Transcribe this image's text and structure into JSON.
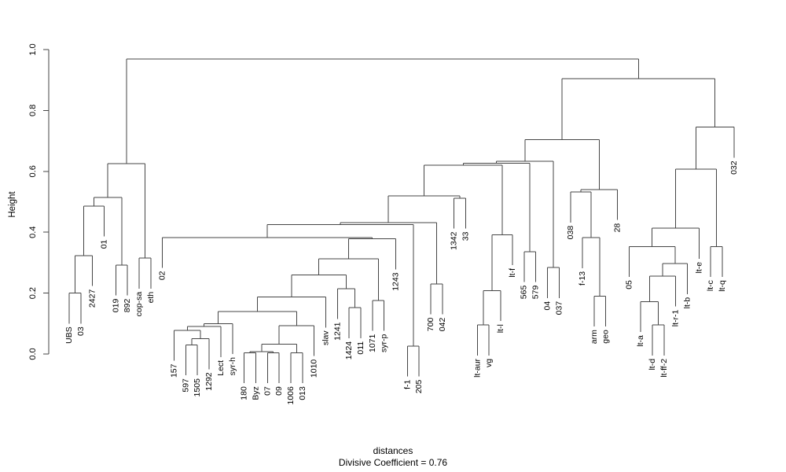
{
  "figure": {
    "ylabel": "Height",
    "caption_line1": "distances",
    "caption_line2": "Divisive Coefficient =  0.76",
    "line_color": "#454545",
    "text_color": "#000000"
  },
  "chart_data": {
    "type": "dendrogram",
    "title": "distances",
    "subtitle": "Divisive Coefficient =  0.76",
    "divisive_coefficient": 0.76,
    "xlabel": "distances",
    "ylabel": "Height",
    "ylim": [
      0,
      1
    ],
    "yticks": [
      0,
      0.2,
      0.4,
      0.6,
      0.8,
      1.0
    ],
    "leaf_hang": 0.1,
    "leaf_order": [
      "UBS",
      "03",
      "2427",
      "01",
      "019",
      "892",
      "cop-sa",
      "eth",
      "02",
      "157",
      "597",
      "1505",
      "1292",
      "Lect",
      "syr-h",
      "180",
      "Byz",
      "07",
      "09",
      "1006",
      "013",
      "1010",
      "slav",
      "1241",
      "1424",
      "011",
      "1071",
      "syr-p",
      "1243",
      "f-1",
      "205",
      "700",
      "042",
      "1342",
      "33",
      "lt-aur",
      "vg",
      "lt-l",
      "lt-f",
      "565",
      "579",
      "04",
      "037",
      "038",
      "f-13",
      "arm",
      "geo",
      "28",
      "05",
      "lt-a",
      "lt-d",
      "lt-ff-2",
      "lt-r-1",
      "lt-b",
      "lt-e",
      "lt-c",
      "lt-q",
      "032"
    ],
    "tree": {
      "h": 0.969,
      "c": [
        {
          "h": 0.625,
          "c": [
            {
              "h": 0.514,
              "c": [
                {
                  "h": 0.486,
                  "c": [
                    {
                      "h": 0.323,
                      "c": [
                        {
                          "h": 0.2,
                          "c": [
                            "UBS",
                            "03"
                          ]
                        },
                        "2427"
                      ]
                    },
                    "01"
                  ]
                },
                {
                  "h": 0.292,
                  "c": [
                    "019",
                    "892"
                  ]
                }
              ]
            },
            {
              "h": 0.315,
              "c": [
                "cop-sa",
                "eth"
              ]
            }
          ]
        },
        {
          "h": 0.905,
          "c": [
            {
              "h": 0.704,
              "c": [
                {
                  "h": 0.633,
                  "c": [
                    {
                      "h": 0.627,
                      "c": [
                        {
                          "h": 0.62,
                          "c": [
                            {
                              "h": 0.519,
                              "c": [
                                {
                                  "h": 0.431,
                                  "c": [
                                    {
                                      "h": 0.425,
                                      "c": [
                                        {
                                          "h": 0.383,
                                          "c": [
                                            "02",
                                            {
                                              "h": 0.378,
                                              "c": [
                                                {
                                                  "h": 0.313,
                                                  "c": [
                                                    {
                                                      "h": 0.26,
                                                      "c": [
                                                        {
                                                          "h": 0.187,
                                                          "c": [
                                                            {
                                                              "h": 0.14,
                                                              "c": [
                                                                {
                                                                  "h": 0.1,
                                                                  "c": [
                                                                    {
                                                                      "h": 0.09,
                                                                      "c": [
                                                                        {
                                                                          "h": 0.078,
                                                                          "c": [
                                                                            "157",
                                                                            {
                                                                              "h": 0.05,
                                                                              "c": [
                                                                                {
                                                                                  "h": 0.03,
                                                                                  "c": [
                                                                                    "597",
                                                                                    "1505"
                                                                                  ]
                                                                                },
                                                                                "1292"
                                                                              ]
                                                                            }
                                                                          ]
                                                                        },
                                                                        "Lect"
                                                                      ]
                                                                    },
                                                                    "syr-h"
                                                                  ]
                                                                },
                                                                {
                                                                  "h": 0.093,
                                                                  "c": [
                                                                    {
                                                                      "h": 0.032,
                                                                      "c": [
                                                                        {
                                                                          "h": 0.008,
                                                                          "c": [
                                                                            {
                                                                              "h": 0.004,
                                                                              "c": [
                                                                                "180",
                                                                                "Byz"
                                                                              ]
                                                                            },
                                                                            {
                                                                              "h": 0.004,
                                                                              "c": [
                                                                                "07",
                                                                                "09"
                                                                              ]
                                                                            }
                                                                          ]
                                                                        },
                                                                        {
                                                                          "h": 0.004,
                                                                          "c": [
                                                                            "1006",
                                                                            "013"
                                                                          ]
                                                                        }
                                                                      ]
                                                                    },
                                                                    "1010"
                                                                  ]
                                                                }
                                                              ]
                                                            },
                                                            "slav"
                                                          ]
                                                        },
                                                        {
                                                          "h": 0.215,
                                                          "c": [
                                                            "1241",
                                                            {
                                                              "h": 0.152,
                                                              "c": [
                                                                "1424",
                                                                "011"
                                                              ]
                                                            }
                                                          ]
                                                        }
                                                      ]
                                                    },
                                                    {
                                                      "h": 0.176,
                                                      "c": [
                                                        "1071",
                                                        "syr-p"
                                                      ]
                                                    }
                                                  ]
                                                },
                                                "1243"
                                              ]
                                            }
                                          ]
                                        },
                                        {
                                          "h": 0.026,
                                          "c": [
                                            "f-1",
                                            "205"
                                          ]
                                        }
                                      ]
                                    },
                                    {
                                      "h": 0.23,
                                      "c": [
                                        "700",
                                        "042"
                                      ]
                                    }
                                  ]
                                },
                                {
                                  "h": 0.512,
                                  "c": [
                                    "1342",
                                    "33"
                                  ]
                                }
                              ]
                            },
                            {
                              "h": 0.392,
                              "c": [
                                {
                                  "h": 0.208,
                                  "c": [
                                    {
                                      "h": 0.095,
                                      "c": [
                                        "lt-aur",
                                        "vg"
                                      ]
                                    },
                                    "lt-l"
                                  ]
                                },
                                "lt-f"
                              ]
                            }
                          ]
                        },
                        {
                          "h": 0.336,
                          "c": [
                            "565",
                            "579"
                          ]
                        }
                      ]
                    },
                    {
                      "h": 0.284,
                      "c": [
                        "04",
                        "037"
                      ]
                    }
                  ]
                },
                {
                  "h": 0.54,
                  "c": [
                    {
                      "h": 0.532,
                      "c": [
                        "038",
                        {
                          "h": 0.382,
                          "c": [
                            "f-13",
                            {
                              "h": 0.19,
                              "c": [
                                "arm",
                                "geo"
                              ]
                            }
                          ]
                        }
                      ]
                    },
                    "28"
                  ]
                }
              ]
            },
            {
              "h": 0.745,
              "c": [
                {
                  "h": 0.607,
                  "c": [
                    {
                      "h": 0.413,
                      "c": [
                        {
                          "h": 0.353,
                          "c": [
                            "05",
                            {
                              "h": 0.297,
                              "c": [
                                {
                                  "h": 0.256,
                                  "c": [
                                    {
                                      "h": 0.172,
                                      "c": [
                                        "lt-a",
                                        {
                                          "h": 0.095,
                                          "c": [
                                            "lt-d",
                                            "lt-ff-2"
                                          ]
                                        }
                                      ]
                                    },
                                    "lt-r-1"
                                  ]
                                },
                                "lt-b"
                              ]
                            }
                          ]
                        },
                        "lt-e"
                      ]
                    },
                    {
                      "h": 0.353,
                      "c": [
                        "lt-c",
                        "lt-q"
                      ]
                    }
                  ]
                },
                "032"
              ]
            }
          ]
        }
      ]
    }
  }
}
